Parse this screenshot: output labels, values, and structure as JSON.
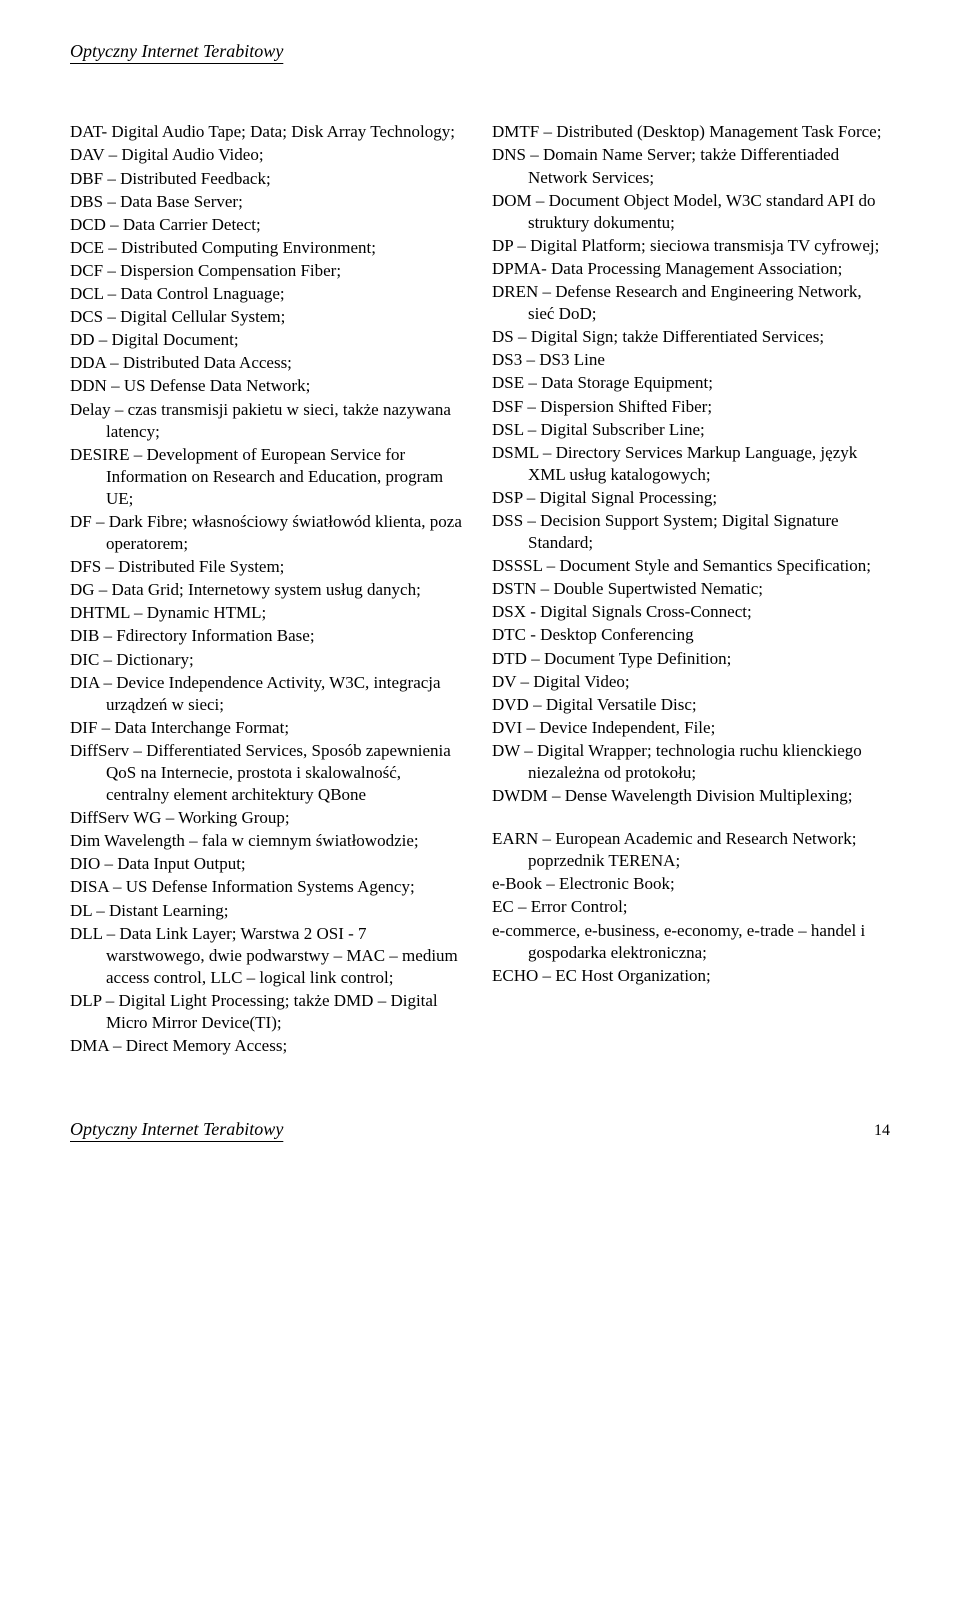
{
  "header": {
    "title": "Optyczny Internet Terabitowy"
  },
  "footer": {
    "title": "Optyczny Internet Terabitowy",
    "page": "14"
  },
  "left": [
    "DAT- Digital Audio Tape; Data; Disk Array Technology;",
    "DAV – Digital Audio Video;",
    "DBF – Distributed Feedback;",
    "DBS – Data Base Server;",
    "DCD – Data Carrier Detect;",
    "DCE – Distributed Computing Environment;",
    "DCF – Dispersion Compensation Fiber;",
    "DCL – Data Control Lnaguage;",
    "DCS – Digital Cellular System;",
    "DD – Digital Document;",
    "DDA – Distributed Data Access;",
    "DDN – US Defense Data Network;",
    "Delay – czas transmisji pakietu w sieci, także nazywana latency;",
    "DESIRE – Development of European Service for Information on Research and Education, program UE;",
    "DF – Dark Fibre; własnościowy światłowód klienta, poza operatorem;",
    "DFS – Distributed File System;",
    "DG – Data Grid; Internetowy system usług danych;",
    "DHTML – Dynamic HTML;",
    "DIB – Fdirectory Information Base;",
    "DIC – Dictionary;",
    "DIA – Device Independence Activity, W3C, integracja urządzeń w sieci;",
    "DIF – Data Interchange Format;",
    "DiffServ – Differentiated Services, Sposób zapewnienia QoS na Internecie, prostota i skalowalność, centralny element architektury QBone",
    "DiffServ WG – Working Group;",
    "Dim Wavelength – fala w ciemnym światłowodzie;",
    "DIO – Data Input Output;",
    "DISA – US  Defense Information Systems Agency;",
    "DL – Distant Learning;",
    "DLL – Data Link Layer; Warstwa 2 OSI  - 7 warstwowego, dwie podwarstwy – MAC – medium access control, LLC – logical link control;",
    "DLP – Digital Light Processing; także DMD – Digital Micro Mirror Device(TI);",
    "DMA – Direct Memory Access;"
  ],
  "right": [
    "DMTF – Distributed (Desktop) Management Task Force;",
    "DNS – Domain Name Server; także Differentiaded Network Services;",
    "DOM – Document Object Model, W3C standard API do struktury dokumentu;",
    "DP – Digital Platform; sieciowa transmisja TV cyfrowej;",
    "DPMA- Data Processing Management Association;",
    "DREN – Defense Research and Engineering Network, sieć DoD;",
    "DS – Digital Sign; także Differentiated Services;",
    "DS3 – DS3 Line",
    "DSE – Data Storage Equipment;",
    "DSF – Dispersion Shifted Fiber;",
    "DSL – Digital Subscriber Line;",
    "DSML – Directory Services Markup Language, język XML usług katalogowych;",
    "DSP – Digital Signal Processing;",
    "DSS – Decision Support System; Digital Signature Standard;",
    "DSSSL – Document Style and Semantics Specification;",
    "DSTN – Double Supertwisted Nematic;",
    "DSX  - Digital Signals Cross-Connect;",
    "DTC - Desktop Conferencing",
    "DTD – Document Type Definition;",
    "DV – Digital Video;",
    "DVD – Digital Versatile Disc;",
    "DVI – Device Independent, File;",
    "DW – Digital Wrapper; technologia ruchu klienckiego niezależna od protokołu;",
    "DWDM – Dense Wavelength Division Multiplexing;",
    "",
    "EARN – European Academic and Research Network; poprzednik TERENA;",
    "e-Book – Electronic Book;",
    "EC – Error Control;",
    "e-commerce, e-business, e-economy, e-trade – handel i gospodarka elektroniczna;",
    "ECHO – EC Host Organization;"
  ]
}
